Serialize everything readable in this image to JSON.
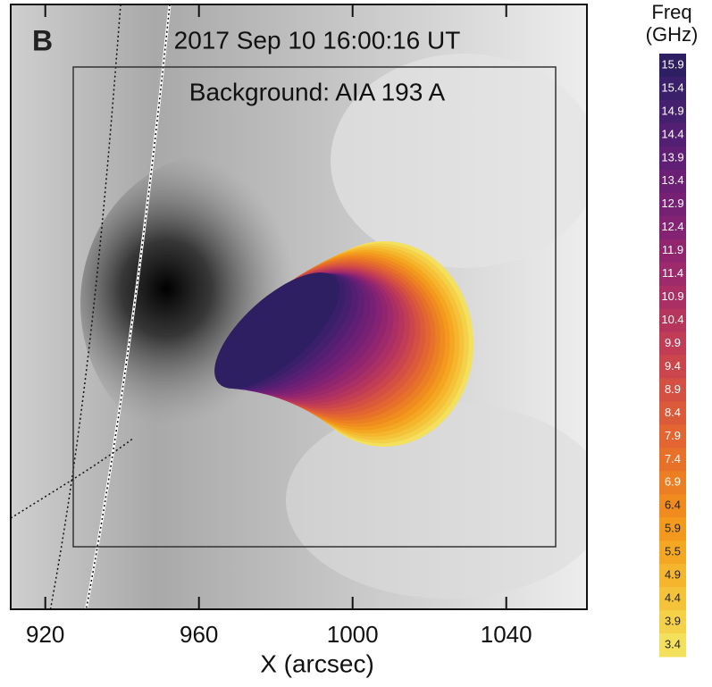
{
  "chart_data": {
    "type": "contour-image",
    "panel_label": "B",
    "title": "2017 Sep 10 16:00:16 UT",
    "subtitle": "Background: AIA 193 A",
    "x_label": "X (arcsec)",
    "xlim": [
      911,
      1061
    ],
    "xticks": [
      920,
      960,
      1000,
      1040
    ],
    "colorbar": {
      "title": [
        "Freq",
        "(GHz)"
      ],
      "values": [
        15.9,
        15.4,
        14.9,
        14.4,
        13.9,
        13.4,
        12.9,
        12.4,
        11.9,
        11.4,
        10.9,
        10.4,
        9.9,
        9.4,
        8.9,
        8.4,
        7.9,
        7.4,
        6.9,
        6.4,
        5.9,
        5.5,
        4.9,
        4.4,
        3.9,
        3.4
      ],
      "colors": [
        "#2e1e62",
        "#3a1f6a",
        "#45206f",
        "#521f73",
        "#5e1f75",
        "#6b2076",
        "#772175",
        "#842373",
        "#91266f",
        "#9d2a6a",
        "#aa2f64",
        "#b5355d",
        "#c03d55",
        "#ca464c",
        "#d35043",
        "#db5a3a",
        "#e26532",
        "#e8712a",
        "#ec7e23",
        "#f08b1f",
        "#f2991e",
        "#f4a723",
        "#f5b52c",
        "#f5c339",
        "#f4d149",
        "#f3e05c"
      ]
    }
  }
}
